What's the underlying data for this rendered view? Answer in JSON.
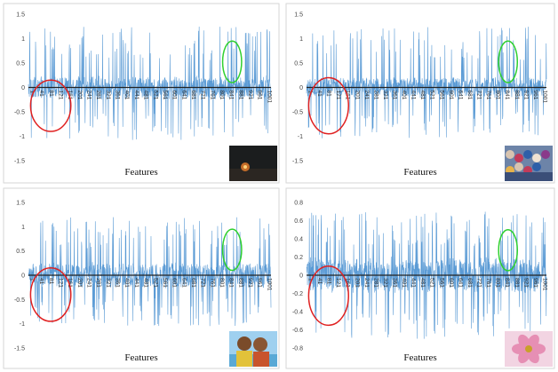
{
  "chart_data": [
    {
      "type": "line",
      "panel": "top-left",
      "ylim": [
        -1.5,
        1.5
      ],
      "yticks": [
        -1.5,
        -1,
        -0.5,
        0,
        0.5,
        1,
        1.5
      ],
      "ytick_labels": [
        "-1.5",
        "-1",
        "-0.5",
        "0",
        "0.5",
        "1",
        "1.5"
      ],
      "xlim": [
        1,
        1024
      ],
      "xticks": [
        1,
        41,
        81,
        121,
        161,
        201,
        241,
        281,
        321,
        361,
        401,
        441,
        481,
        521,
        561,
        601,
        641,
        681,
        721,
        761,
        801,
        841,
        881,
        921,
        961,
        1001
      ],
      "xlabel": "Features",
      "value_range": [
        -1.1,
        1.25
      ],
      "typical_amplitude": 0.38,
      "thumbnail": "dark-night-scene-thumbnail",
      "annotations": [
        {
          "shape": "ellipse",
          "color": "#e02020",
          "x_range": [
            10,
            180
          ],
          "y_range": [
            -0.9,
            0.15
          ]
        },
        {
          "shape": "ellipse",
          "color": "#30d030",
          "x_range": [
            820,
            900
          ],
          "y_range": [
            0.1,
            0.95
          ]
        }
      ]
    },
    {
      "type": "line",
      "panel": "top-right",
      "ylim": [
        -1.5,
        1.5
      ],
      "yticks": [
        -1.5,
        -1,
        -0.5,
        0,
        0.5,
        1,
        1.5
      ],
      "ytick_labels": [
        "-1.5",
        "-1",
        "-0.5",
        "0",
        "0.5",
        "1",
        "1.5"
      ],
      "xlim": [
        1,
        1024
      ],
      "xticks": [
        1,
        41,
        81,
        121,
        161,
        201,
        241,
        281,
        321,
        361,
        401,
        441,
        481,
        521,
        561,
        601,
        641,
        681,
        721,
        761,
        801,
        841,
        881,
        921,
        961,
        1001
      ],
      "xlabel": "Features",
      "value_range": [
        -1.05,
        1.25
      ],
      "typical_amplitude": 0.33,
      "thumbnail": "crowd-scene-thumbnail",
      "annotations": [
        {
          "shape": "ellipse",
          "color": "#e02020",
          "x_range": [
            10,
            180
          ],
          "y_range": [
            -0.95,
            0.2
          ]
        },
        {
          "shape": "ellipse",
          "color": "#30d030",
          "x_range": [
            820,
            900
          ],
          "y_range": [
            0.1,
            0.95
          ]
        }
      ]
    },
    {
      "type": "line",
      "panel": "bottom-left",
      "ylim": [
        -1.5,
        1.5
      ],
      "yticks": [
        -1.5,
        -1,
        -0.5,
        0,
        0.5,
        1,
        1.5
      ],
      "ytick_labels": [
        "-1.5",
        "-1",
        "-0.5",
        "0",
        "0.5",
        "1",
        "1.5"
      ],
      "xlim": [
        1,
        1024
      ],
      "xticks": [
        1,
        41,
        81,
        121,
        161,
        201,
        241,
        281,
        321,
        361,
        401,
        441,
        481,
        521,
        561,
        601,
        641,
        681,
        721,
        761,
        801,
        841,
        881,
        921,
        961,
        1001
      ],
      "xlabel": "Features",
      "value_range": [
        -1.05,
        1.2
      ],
      "typical_amplitude": 0.42,
      "thumbnail": "children-portrait-thumbnail",
      "annotations": [
        {
          "shape": "ellipse",
          "color": "#e02020",
          "x_range": [
            10,
            180
          ],
          "y_range": [
            -0.95,
            0.15
          ]
        },
        {
          "shape": "ellipse",
          "color": "#30d030",
          "x_range": [
            820,
            900
          ],
          "y_range": [
            0.1,
            0.95
          ]
        }
      ]
    },
    {
      "type": "line",
      "panel": "bottom-right",
      "ylim": [
        -0.8,
        0.8
      ],
      "yticks": [
        -0.8,
        -0.6,
        -0.4,
        -0.2,
        0,
        0.2,
        0.4,
        0.6,
        0.8
      ],
      "ytick_labels": [
        "-0.8",
        "-0.6",
        "-0.4",
        "-0.2",
        "0",
        "0.2",
        "0.4",
        "0.6",
        "0.8"
      ],
      "xlim": [
        1,
        1024
      ],
      "xticks": [
        1,
        41,
        81,
        121,
        161,
        201,
        241,
        281,
        321,
        361,
        401,
        441,
        481,
        521,
        561,
        601,
        641,
        681,
        721,
        761,
        801,
        841,
        881,
        921,
        961,
        1001
      ],
      "xlabel": "Features",
      "value_range": [
        -0.7,
        0.7
      ],
      "typical_amplitude": 0.3,
      "thumbnail": "flower-closeup-thumbnail",
      "annotations": [
        {
          "shape": "ellipse",
          "color": "#e02020",
          "x_range": [
            10,
            180
          ],
          "y_range": [
            -0.55,
            0.1
          ]
        },
        {
          "shape": "ellipse",
          "color": "#30d030",
          "x_range": [
            820,
            900
          ],
          "y_range": [
            0.05,
            0.5
          ]
        }
      ]
    }
  ]
}
